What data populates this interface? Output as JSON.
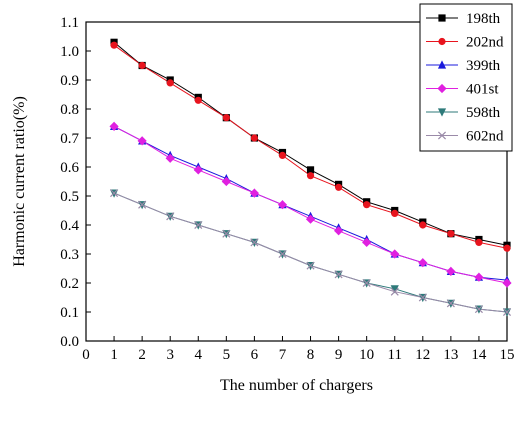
{
  "chart_data": {
    "type": "line",
    "title": "",
    "xlabel": "The number of chargers",
    "ylabel": "Harmonic current ratio(%)",
    "xlim": [
      0,
      15
    ],
    "ylim": [
      0.0,
      1.1
    ],
    "xticks": [
      0,
      1,
      2,
      3,
      4,
      5,
      6,
      7,
      8,
      9,
      10,
      11,
      12,
      13,
      14,
      15
    ],
    "yticks": [
      0.0,
      0.1,
      0.2,
      0.3,
      0.4,
      0.5,
      0.6,
      0.7,
      0.8,
      0.9,
      1.0,
      1.1
    ],
    "ytick_labels": [
      "0.0",
      "0.1",
      "0.2",
      "0.3",
      "0.4",
      "0.5",
      "0.6",
      "0.7",
      "0.8",
      "0.9",
      "1.0",
      "1.1"
    ],
    "grid": false,
    "legend_position": "top-right",
    "x": [
      1,
      2,
      3,
      4,
      5,
      6,
      7,
      8,
      9,
      10,
      11,
      12,
      13,
      14,
      15
    ],
    "series": [
      {
        "name": "198th",
        "color": "#000000",
        "marker": "square",
        "values": [
          1.03,
          0.95,
          0.9,
          0.84,
          0.77,
          0.7,
          0.65,
          0.59,
          0.54,
          0.48,
          0.45,
          0.41,
          0.37,
          0.35,
          0.33
        ]
      },
      {
        "name": "202nd",
        "color": "#e8141e",
        "marker": "circle",
        "values": [
          1.02,
          0.95,
          0.89,
          0.83,
          0.77,
          0.7,
          0.64,
          0.57,
          0.53,
          0.47,
          0.44,
          0.4,
          0.37,
          0.34,
          0.32
        ]
      },
      {
        "name": "399th",
        "color": "#1a1adc",
        "marker": "triangle-up",
        "values": [
          0.74,
          0.69,
          0.64,
          0.6,
          0.56,
          0.51,
          0.47,
          0.43,
          0.39,
          0.35,
          0.3,
          0.27,
          0.24,
          0.22,
          0.21
        ]
      },
      {
        "name": "401st",
        "color": "#e020e0",
        "marker": "diamond",
        "values": [
          0.74,
          0.69,
          0.63,
          0.59,
          0.55,
          0.51,
          0.47,
          0.42,
          0.38,
          0.34,
          0.3,
          0.27,
          0.24,
          0.22,
          0.2
        ]
      },
      {
        "name": "598th",
        "color": "#2e7a7a",
        "marker": "triangle-down",
        "values": [
          0.51,
          0.47,
          0.43,
          0.4,
          0.37,
          0.34,
          0.3,
          0.26,
          0.23,
          0.2,
          0.18,
          0.15,
          0.13,
          0.11,
          0.1
        ]
      },
      {
        "name": "602nd",
        "color": "#9a8aa8",
        "marker": "x",
        "values": [
          0.51,
          0.47,
          0.43,
          0.4,
          0.37,
          0.34,
          0.3,
          0.26,
          0.23,
          0.2,
          0.17,
          0.15,
          0.13,
          0.11,
          0.1
        ]
      }
    ]
  }
}
